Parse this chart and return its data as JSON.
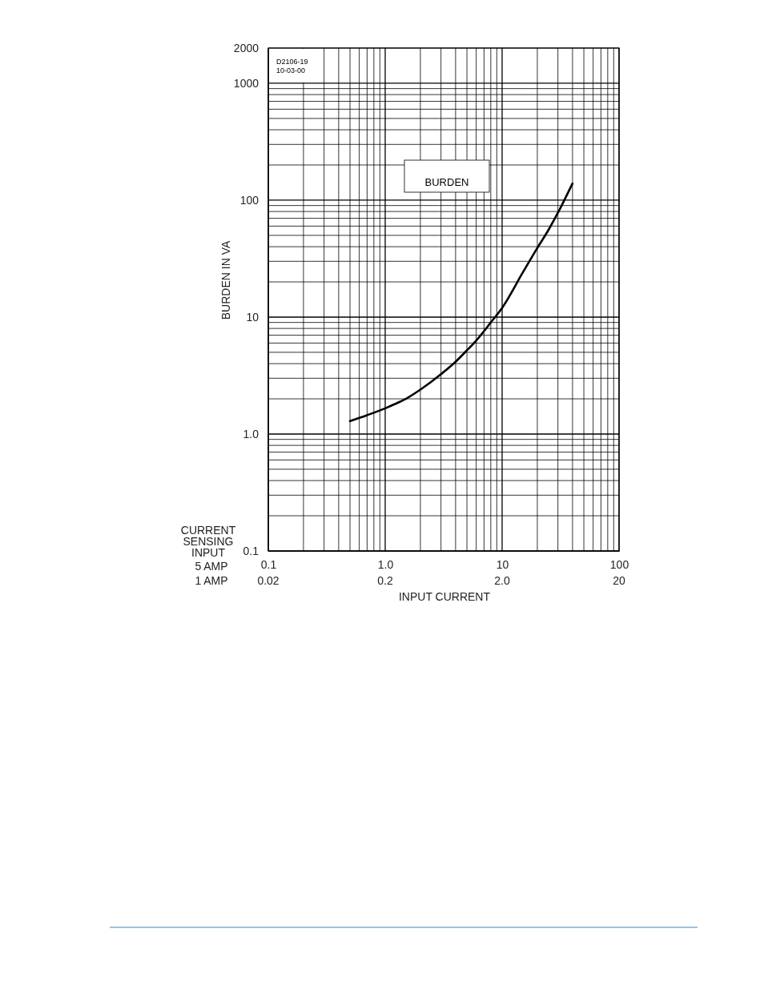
{
  "chart_data": {
    "type": "line",
    "xlabel": "INPUT CURRENT",
    "ylabel": "BURDEN IN VA",
    "annotations": [
      "D2106-19 10-03-00",
      "BURDEN",
      "CURRENT SENSING INPUT",
      "5 AMP",
      "1 AMP",
      "0.02",
      "0.2",
      "2.0",
      "20"
    ],
    "log": "xy",
    "grid": true,
    "marker": "none",
    "line_style": "solid",
    "xlim": [
      0.1,
      100
    ],
    "xticks": [
      0.1,
      {
        "value": 1,
        "label": "1.0"
      },
      10,
      100
    ],
    "ylim": [
      0.1,
      2000
    ],
    "yticks": [
      0.1,
      {
        "value": 1,
        "label": "1.0"
      },
      10,
      100,
      1000,
      2000
    ],
    "series": [
      {
        "color": "#000000",
        "x": [
          0.5,
          0.7,
          1.0,
          1.2,
          1.5,
          2,
          3,
          4,
          5,
          6,
          8,
          10,
          15,
          20,
          25,
          30,
          40
        ],
        "values": [
          1.29,
          1.45,
          1.66,
          1.8,
          2.0,
          2.4,
          3.25,
          4.15,
          5.2,
          6.3,
          9.0,
          12,
          24,
          39,
          56,
          78,
          139
        ]
      }
    ]
  }
}
